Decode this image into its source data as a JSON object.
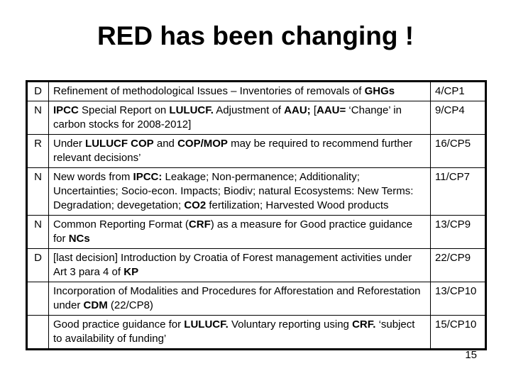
{
  "slide": {
    "title": "RED has been changing !",
    "page_number": "15"
  },
  "table": {
    "rows": [
      {
        "letter": "D",
        "ref": "4/CP1",
        "segments": [
          {
            "text": "Refinement of methodological Issues – Inventories of removals of ",
            "bold": false
          },
          {
            "text": "GHGs",
            "bold": true
          }
        ]
      },
      {
        "letter": "N",
        "ref": "9/CP4",
        "segments": [
          {
            "text": "IPCC",
            "bold": true
          },
          {
            "text": " Special Report on ",
            "bold": false
          },
          {
            "text": "LULUCF.",
            "bold": true
          },
          {
            "text": " Adjustment of ",
            "bold": false
          },
          {
            "text": "AAU;",
            "bold": true
          },
          {
            "text": " [",
            "bold": false
          },
          {
            "text": "AAU=",
            "bold": true
          },
          {
            "text": " ‘Change’ in carbon stocks for 2008-2012]",
            "bold": false
          }
        ]
      },
      {
        "letter": "R",
        "ref": "16/CP5",
        "segments": [
          {
            "text": "Under ",
            "bold": false
          },
          {
            "text": "LULUCF COP",
            "bold": true
          },
          {
            "text": " and ",
            "bold": false
          },
          {
            "text": "COP/MOP",
            "bold": true
          },
          {
            "text": " may be required to recommend further relevant decisions’",
            "bold": false
          }
        ]
      },
      {
        "letter": "N",
        "ref": "11/CP7",
        "segments": [
          {
            "text": "New words from ",
            "bold": false
          },
          {
            "text": "IPCC:",
            "bold": true
          },
          {
            "text": " Leakage; Non-permanence; Additionality; Uncertainties; Socio-econ. Impacts; Biodiv; natural Ecosystems: New Terms: Degradation; devegetation; ",
            "bold": false
          },
          {
            "text": "CO2",
            "bold": true
          },
          {
            "text": " fertilization; Harvested Wood products",
            "bold": false
          }
        ]
      },
      {
        "letter": "N",
        "ref": "13/CP9",
        "segments": [
          {
            "text": "Common Reporting Format (",
            "bold": false
          },
          {
            "text": "CRF",
            "bold": true
          },
          {
            "text": ") as a measure for Good practice guidance for ",
            "bold": false
          },
          {
            "text": "NCs",
            "bold": true
          }
        ]
      },
      {
        "letter": "D",
        "ref": "22/CP9",
        "segments": [
          {
            "text": "[last decision] Introduction by Croatia of Forest management activities under Art 3 para 4 of ",
            "bold": false
          },
          {
            "text": "KP",
            "bold": true
          }
        ]
      },
      {
        "letter": "",
        "ref": "13/CP10",
        "segments": [
          {
            "text": "Incorporation of Modalities and Procedures for Afforestation and Reforestation under ",
            "bold": false
          },
          {
            "text": "CDM",
            "bold": true
          },
          {
            "text": " (22/CP8)",
            "bold": false
          }
        ]
      },
      {
        "letter": "",
        "ref": "15/CP10",
        "segments": [
          {
            "text": "Good practice guidance for ",
            "bold": false
          },
          {
            "text": "LULUCF.",
            "bold": true
          },
          {
            "text": " Voluntary reporting using ",
            "bold": false
          },
          {
            "text": "CRF.",
            "bold": true
          },
          {
            "text": " ‘subject to availability of funding’",
            "bold": false
          }
        ]
      }
    ]
  }
}
